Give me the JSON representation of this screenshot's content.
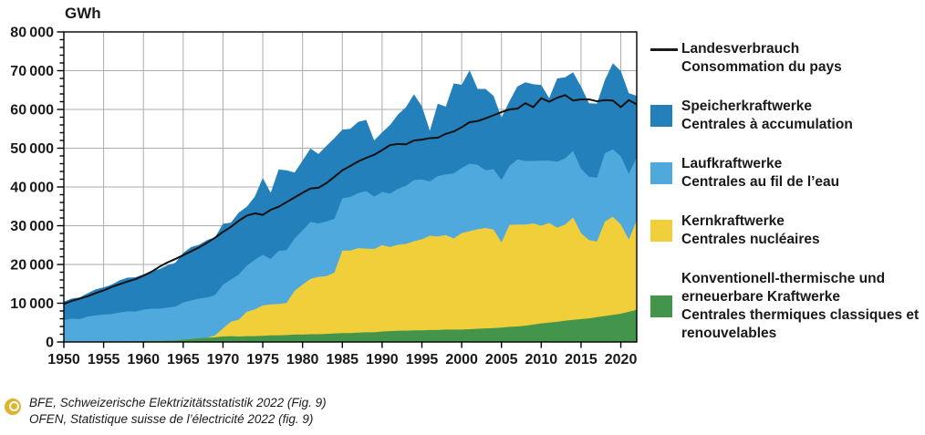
{
  "chart_data": {
    "type": "area",
    "stacked": true,
    "title": "",
    "ylabel": "GWh",
    "xlabel": "",
    "ylim": [
      0,
      80000
    ],
    "ytick_step": 10000,
    "yminor_step": 2000,
    "x_ticks": [
      1950,
      1955,
      1960,
      1965,
      1970,
      1975,
      1980,
      1985,
      1990,
      1995,
      2000,
      2005,
      2010,
      2015,
      2020
    ],
    "grid": true,
    "legend_position": "right",
    "x": [
      1950,
      1951,
      1952,
      1953,
      1954,
      1955,
      1956,
      1957,
      1958,
      1959,
      1960,
      1961,
      1962,
      1963,
      1964,
      1965,
      1966,
      1967,
      1968,
      1969,
      1970,
      1971,
      1972,
      1973,
      1974,
      1975,
      1976,
      1977,
      1978,
      1979,
      1980,
      1981,
      1982,
      1983,
      1984,
      1985,
      1986,
      1987,
      1988,
      1989,
      1990,
      1991,
      1992,
      1993,
      1994,
      1995,
      1996,
      1997,
      1998,
      1999,
      2000,
      2001,
      2002,
      2003,
      2004,
      2005,
      2006,
      2007,
      2008,
      2009,
      2010,
      2011,
      2012,
      2013,
      2014,
      2015,
      2016,
      2017,
      2018,
      2019,
      2020,
      2021,
      2022
    ],
    "series": [
      {
        "name": "Konventionell-thermische und erneuerbare Kraftwerke / Centrales thermiques classiques et renouvelables",
        "type": "area",
        "color": "#42954A",
        "values": [
          100,
          100,
          100,
          150,
          150,
          150,
          200,
          200,
          200,
          250,
          250,
          300,
          300,
          350,
          400,
          600,
          800,
          1000,
          1100,
          1200,
          1400,
          1500,
          1400,
          1500,
          1500,
          1600,
          1700,
          1700,
          1800,
          1900,
          1900,
          2000,
          2000,
          2100,
          2200,
          2300,
          2300,
          2400,
          2500,
          2500,
          2700,
          2800,
          2900,
          2900,
          3000,
          3000,
          3100,
          3100,
          3200,
          3200,
          3200,
          3300,
          3400,
          3500,
          3600,
          3700,
          3900,
          4000,
          4200,
          4500,
          4800,
          5000,
          5200,
          5500,
          5700,
          5900,
          6100,
          6400,
          6700,
          7000,
          7300,
          7800,
          8300
        ]
      },
      {
        "name": "Kernkraftwerke / Centrales nucléaires",
        "type": "area",
        "color": "#F1CF3B",
        "values": [
          0,
          0,
          0,
          0,
          0,
          0,
          0,
          0,
          0,
          0,
          0,
          0,
          0,
          0,
          0,
          0,
          0,
          0,
          0,
          500,
          2100,
          3700,
          4400,
          6300,
          6900,
          7800,
          8000,
          8100,
          8300,
          11300,
          12900,
          14300,
          14800,
          14900,
          15700,
          21300,
          21300,
          21800,
          21600,
          21500,
          22300,
          21700,
          22200,
          22400,
          23000,
          23500,
          24300,
          24100,
          24400,
          23500,
          24900,
          25300,
          25700,
          25900,
          25400,
          22000,
          26300,
          26300,
          26100,
          26100,
          25200,
          25700,
          24300,
          24800,
          26400,
          22200,
          20200,
          19500,
          24400,
          25300,
          23000,
          18600,
          23100
        ]
      },
      {
        "name": "Laufkraftwerke / Centrales au fil de l’eau",
        "type": "area",
        "color": "#4FA9DC",
        "values": [
          5600,
          5900,
          5800,
          6400,
          6700,
          6900,
          7000,
          7400,
          7700,
          7600,
          8100,
          8300,
          8300,
          8500,
          8700,
          9600,
          9900,
          10200,
          10400,
          10400,
          11300,
          10900,
          11600,
          11900,
          12800,
          13100,
          11700,
          13700,
          13600,
          13500,
          14000,
          14700,
          13800,
          14100,
          13900,
          13500,
          13800,
          14200,
          14800,
          13500,
          13700,
          13800,
          14400,
          15000,
          15800,
          15400,
          14000,
          15600,
          15600,
          16800,
          16800,
          17400,
          16600,
          14900,
          15600,
          16100,
          15200,
          16800,
          16400,
          16100,
          16800,
          16100,
          17000,
          17100,
          17200,
          16600,
          16300,
          16500,
          17600,
          17400,
          17600,
          17000,
          16200
        ]
      },
      {
        "name": "Speicherkraftwerke / Centrales à accumulation",
        "type": "area",
        "color": "#2380BA",
        "values": [
          4700,
          5200,
          5600,
          6050,
          6750,
          7050,
          7600,
          8300,
          8700,
          8850,
          9050,
          9700,
          10200,
          10950,
          11300,
          12800,
          13800,
          13900,
          14800,
          14900,
          15700,
          14700,
          16000,
          15200,
          16300,
          19800,
          17100,
          21000,
          20600,
          17000,
          18000,
          18900,
          17900,
          19500,
          20800,
          17700,
          17600,
          18400,
          18400,
          14500,
          15400,
          17700,
          19200,
          20300,
          22100,
          18900,
          13100,
          18700,
          17500,
          23200,
          21450,
          24100,
          19600,
          21000,
          18900,
          16100,
          16700,
          18800,
          20300,
          19800,
          19500,
          16100,
          21500,
          20900,
          20300,
          21200,
          19000,
          19100,
          18900,
          22200,
          22000,
          20800,
          15900
        ]
      },
      {
        "name": "Landesverbrauch / Consommation du pays",
        "type": "line",
        "color": "#111111",
        "values": [
          9800,
          10600,
          11200,
          11800,
          12600,
          13300,
          14200,
          14900,
          15600,
          16200,
          17100,
          18100,
          19400,
          20500,
          21400,
          22400,
          23400,
          24400,
          25600,
          26900,
          28400,
          29700,
          31300,
          32600,
          33200,
          32800,
          34100,
          34900,
          36100,
          37300,
          38500,
          39600,
          39800,
          41000,
          42600,
          44300,
          45400,
          46600,
          47500,
          48300,
          49500,
          50800,
          51100,
          51000,
          52000,
          52200,
          52600,
          52700,
          53700,
          54300,
          55400,
          56700,
          57000,
          57700,
          58500,
          59300,
          60000,
          60200,
          61600,
          60600,
          62900,
          62000,
          63000,
          63700,
          62300,
          62600,
          62600,
          62100,
          62400,
          62300,
          60600,
          62400,
          61300
        ]
      }
    ],
    "colors": {
      "grid": "#ABABAB",
      "axis": "#000000",
      "text": "#1a1a1a"
    }
  },
  "legend": {
    "items": [
      {
        "swatch": "line",
        "color": "#1A1A1A",
        "label_de": "Landesverbrauch",
        "label_fr": "Consommation du pays"
      },
      {
        "swatch": "box",
        "color": "#2380BA",
        "label_de": "Speicherkraftwerke",
        "label_fr": "Centrales à accumulation"
      },
      {
        "swatch": "box",
        "color": "#4FA9DC",
        "label_de": "Laufkraftwerke",
        "label_fr": "Centrales au fil de l’eau"
      },
      {
        "swatch": "box",
        "color": "#F1CF3B",
        "label_de": "Kernkraftwerke",
        "label_fr": "Centrales nucléaires"
      },
      {
        "swatch": "box",
        "color": "#42954A",
        "label_de": "Konventionell-thermische und erneuerbare Kraftwerke",
        "label_fr": "Centrales thermiques classiques et renouvelables"
      }
    ]
  },
  "source": {
    "line1": "BFE, Schweizerische Elektrizitätsstatistik 2022 (Fig. 9)",
    "line2": "OFEN, Statistique suisse de l’électricité 2022 (fig. 9)"
  }
}
